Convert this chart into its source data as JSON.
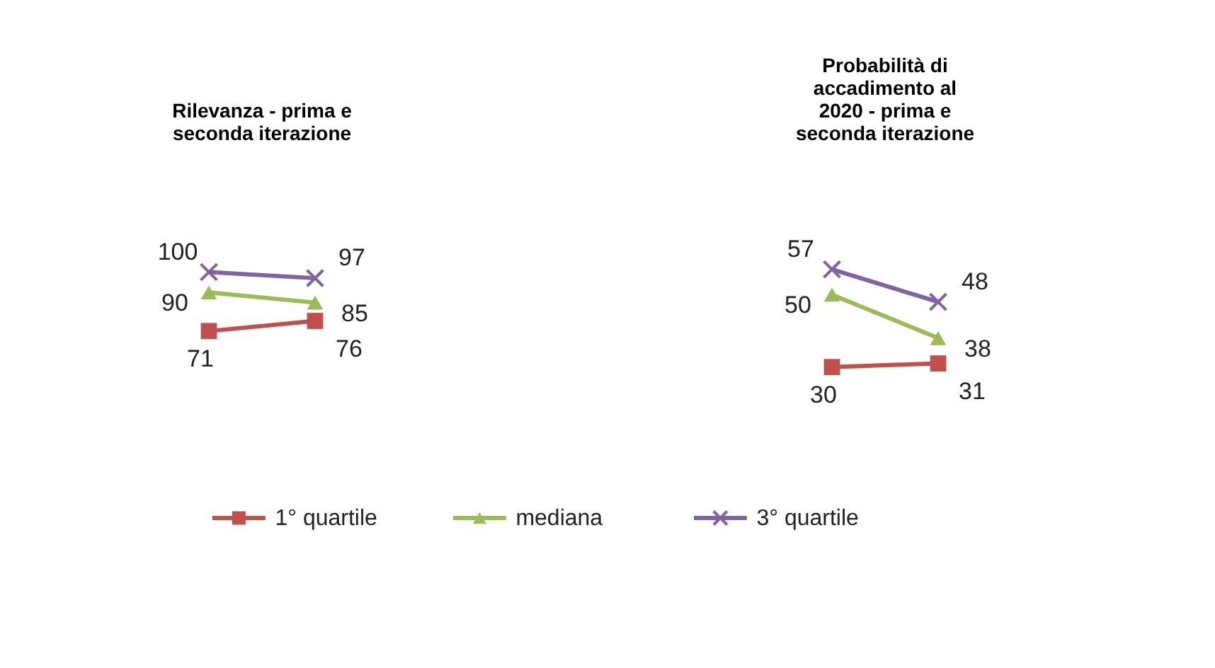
{
  "chart_data": [
    {
      "type": "line",
      "title": [
        "Rilevanza - prima e",
        "seconda iterazione"
      ],
      "categories": [
        null,
        null
      ],
      "tick_labels": false,
      "data_labels": true,
      "legend": "bottom",
      "series": [
        {
          "name": "1° quartile",
          "color": "#c0504d",
          "marker": "square",
          "values": [
            71,
            76
          ]
        },
        {
          "name": "mediana",
          "color": "#9bbb59",
          "marker": "triangle",
          "values": [
            90,
            85
          ]
        },
        {
          "name": "3° quartile",
          "color": "#8064a2",
          "marker": "cross",
          "values": [
            100,
            97
          ]
        }
      ]
    },
    {
      "type": "line",
      "title": [
        "Probabilità di",
        "accadimento al",
        "2020 -  prima e",
        "seconda iterazione"
      ],
      "categories": [
        null,
        null
      ],
      "tick_labels": false,
      "data_labels": true,
      "legend": "bottom",
      "series": [
        {
          "name": "1° quartile",
          "color": "#c0504d",
          "marker": "square",
          "values": [
            30,
            31
          ]
        },
        {
          "name": "mediana",
          "color": "#9bbb59",
          "marker": "triangle",
          "values": [
            50,
            38
          ]
        },
        {
          "name": "3° quartile",
          "color": "#8064a2",
          "marker": "cross",
          "values": [
            57,
            48
          ]
        }
      ]
    }
  ]
}
